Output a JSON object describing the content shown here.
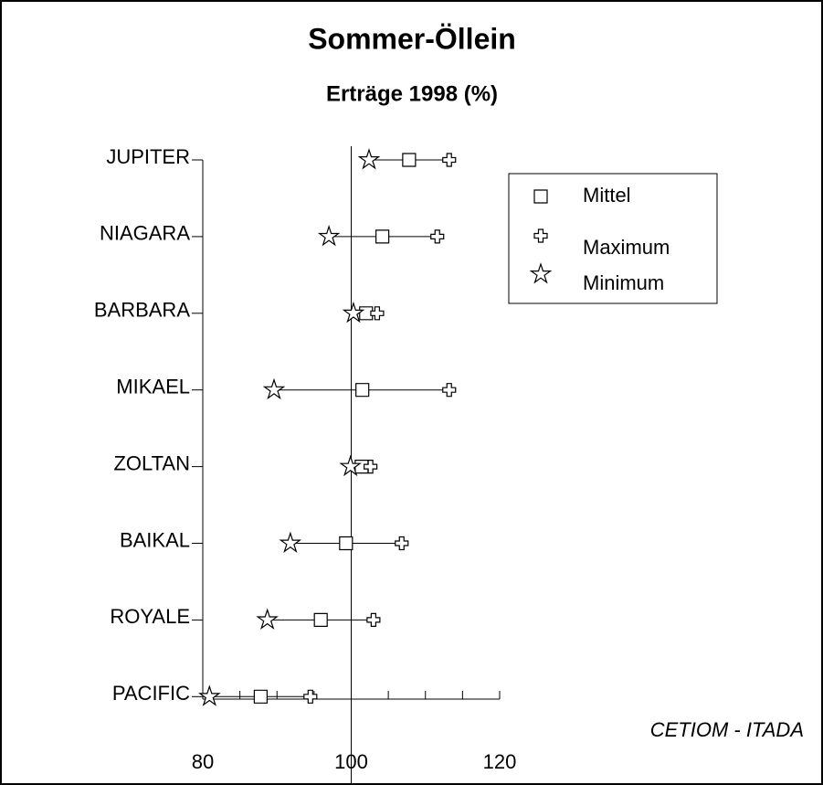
{
  "chart_data": {
    "type": "range-dot",
    "title": "Sommer-Öllein",
    "subtitle": "Erträge 1998 (%)",
    "annotation": "CETIOM - ITADA",
    "categories": [
      "JUPITER",
      "NIAGARA",
      "BARBARA",
      "MIKAEL",
      "ZOLTAN",
      "BAIKAL",
      "ROYALE",
      "PACIFIC"
    ],
    "series": [
      {
        "name": "Mittel",
        "marker": "square",
        "color": "#000000",
        "values": [
          107.8,
          104.2,
          102.0,
          101.5,
          101.4,
          99.3,
          95.9,
          87.8
        ]
      },
      {
        "name": "Maximum",
        "marker": "plus",
        "color": "#000000",
        "values": [
          113.2,
          111.6,
          103.5,
          113.2,
          102.6,
          106.8,
          103.0,
          94.5
        ]
      },
      {
        "name": "Minimum",
        "marker": "star",
        "color": "#000000",
        "values": [
          102.4,
          97.0,
          100.3,
          89.6,
          99.9,
          91.8,
          88.7,
          80.9
        ]
      }
    ],
    "xlim": [
      80,
      120
    ],
    "xticks": [
      80,
      100,
      120
    ],
    "xminor_ticks": [
      85,
      90,
      95,
      105,
      110,
      115
    ],
    "reference_line": 100,
    "legend": "top-right"
  }
}
